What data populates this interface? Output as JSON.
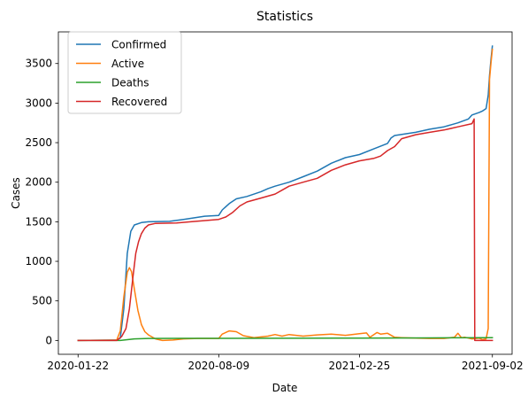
{
  "chart_data": {
    "type": "line",
    "title": "Statistics",
    "xlabel": "Date",
    "ylabel": "Cases",
    "x_axis": {
      "start": "2020-01-22",
      "end": "2021-09-02",
      "ticks": [
        {
          "label": "2020-01-22",
          "day": 0
        },
        {
          "label": "2020-08-09",
          "day": 200
        },
        {
          "label": "2021-02-25",
          "day": 400
        },
        {
          "label": "2021-09-02",
          "day": 589
        }
      ],
      "xlim": [
        -28,
        617
      ]
    },
    "y_axis": {
      "ticks": [
        0,
        500,
        1000,
        1500,
        2000,
        2500,
        3000,
        3500
      ],
      "ylim": [
        -175,
        3900
      ]
    },
    "legend": {
      "position": "upper-left",
      "entries": [
        "Confirmed",
        "Active",
        "Deaths",
        "Recovered"
      ]
    },
    "series": [
      {
        "name": "Confirmed",
        "color": "#1f77b4",
        "points": [
          [
            0,
            0
          ],
          [
            55,
            5
          ],
          [
            60,
            30
          ],
          [
            65,
            400
          ],
          [
            70,
            1100
          ],
          [
            75,
            1380
          ],
          [
            80,
            1460
          ],
          [
            90,
            1490
          ],
          [
            100,
            1500
          ],
          [
            130,
            1505
          ],
          [
            150,
            1530
          ],
          [
            180,
            1570
          ],
          [
            200,
            1580
          ],
          [
            205,
            1650
          ],
          [
            215,
            1730
          ],
          [
            225,
            1790
          ],
          [
            240,
            1820
          ],
          [
            260,
            1880
          ],
          [
            270,
            1920
          ],
          [
            280,
            1950
          ],
          [
            300,
            2000
          ],
          [
            320,
            2070
          ],
          [
            340,
            2140
          ],
          [
            360,
            2240
          ],
          [
            380,
            2310
          ],
          [
            400,
            2350
          ],
          [
            420,
            2420
          ],
          [
            440,
            2490
          ],
          [
            445,
            2560
          ],
          [
            450,
            2590
          ],
          [
            480,
            2630
          ],
          [
            500,
            2670
          ],
          [
            520,
            2700
          ],
          [
            540,
            2750
          ],
          [
            555,
            2800
          ],
          [
            560,
            2850
          ],
          [
            570,
            2880
          ],
          [
            575,
            2900
          ],
          [
            580,
            2930
          ],
          [
            583,
            3100
          ],
          [
            585,
            3350
          ],
          [
            587,
            3550
          ],
          [
            589,
            3720
          ]
        ]
      },
      {
        "name": "Active",
        "color": "#ff7f0e",
        "points": [
          [
            0,
            0
          ],
          [
            55,
            5
          ],
          [
            60,
            120
          ],
          [
            65,
            550
          ],
          [
            70,
            860
          ],
          [
            73,
            920
          ],
          [
            76,
            870
          ],
          [
            80,
            650
          ],
          [
            85,
            380
          ],
          [
            90,
            200
          ],
          [
            95,
            110
          ],
          [
            100,
            70
          ],
          [
            110,
            20
          ],
          [
            120,
            0
          ],
          [
            135,
            5
          ],
          [
            150,
            20
          ],
          [
            170,
            25
          ],
          [
            200,
            25
          ],
          [
            205,
            80
          ],
          [
            215,
            120
          ],
          [
            225,
            110
          ],
          [
            235,
            60
          ],
          [
            250,
            35
          ],
          [
            270,
            55
          ],
          [
            280,
            75
          ],
          [
            290,
            55
          ],
          [
            300,
            75
          ],
          [
            320,
            55
          ],
          [
            340,
            70
          ],
          [
            360,
            80
          ],
          [
            380,
            65
          ],
          [
            400,
            85
          ],
          [
            410,
            95
          ],
          [
            415,
            40
          ],
          [
            425,
            100
          ],
          [
            430,
            80
          ],
          [
            440,
            90
          ],
          [
            450,
            40
          ],
          [
            460,
            35
          ],
          [
            480,
            30
          ],
          [
            500,
            25
          ],
          [
            520,
            25
          ],
          [
            535,
            40
          ],
          [
            540,
            90
          ],
          [
            545,
            35
          ],
          [
            550,
            40
          ],
          [
            560,
            20
          ],
          [
            570,
            30
          ],
          [
            575,
            10
          ],
          [
            580,
            20
          ],
          [
            583,
            150
          ],
          [
            585,
            3300
          ],
          [
            587,
            3500
          ],
          [
            589,
            3680
          ]
        ]
      },
      {
        "name": "Deaths",
        "color": "#2ca02c",
        "points": [
          [
            0,
            0
          ],
          [
            60,
            0
          ],
          [
            70,
            10
          ],
          [
            80,
            20
          ],
          [
            100,
            25
          ],
          [
            150,
            26
          ],
          [
            200,
            26
          ],
          [
            300,
            28
          ],
          [
            400,
            30
          ],
          [
            500,
            32
          ],
          [
            589,
            35
          ]
        ]
      },
      {
        "name": "Recovered",
        "color": "#d62728",
        "points": [
          [
            0,
            0
          ],
          [
            55,
            0
          ],
          [
            62,
            50
          ],
          [
            68,
            150
          ],
          [
            73,
            400
          ],
          [
            78,
            800
          ],
          [
            82,
            1100
          ],
          [
            86,
            1250
          ],
          [
            90,
            1350
          ],
          [
            95,
            1420
          ],
          [
            100,
            1460
          ],
          [
            110,
            1480
          ],
          [
            140,
            1485
          ],
          [
            160,
            1500
          ],
          [
            200,
            1530
          ],
          [
            210,
            1560
          ],
          [
            220,
            1620
          ],
          [
            230,
            1700
          ],
          [
            240,
            1750
          ],
          [
            260,
            1800
          ],
          [
            280,
            1850
          ],
          [
            290,
            1900
          ],
          [
            300,
            1950
          ],
          [
            320,
            2000
          ],
          [
            340,
            2050
          ],
          [
            360,
            2150
          ],
          [
            380,
            2220
          ],
          [
            400,
            2270
          ],
          [
            420,
            2300
          ],
          [
            430,
            2330
          ],
          [
            440,
            2400
          ],
          [
            450,
            2450
          ],
          [
            460,
            2550
          ],
          [
            480,
            2600
          ],
          [
            500,
            2630
          ],
          [
            520,
            2660
          ],
          [
            540,
            2700
          ],
          [
            560,
            2740
          ],
          [
            563,
            2800
          ],
          [
            564,
            0
          ],
          [
            565,
            0
          ],
          [
            589,
            0
          ]
        ]
      }
    ]
  }
}
